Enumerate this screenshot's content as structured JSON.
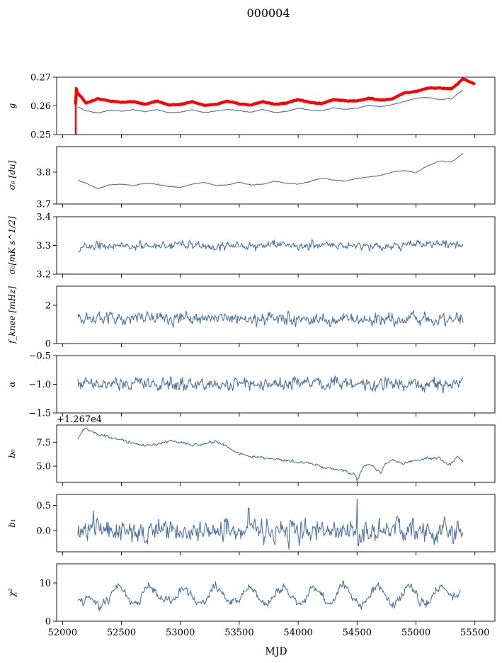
{
  "title": "000004",
  "xlabel": "MJD",
  "x_ticks": [
    "52000",
    "52500",
    "53000",
    "53500",
    "54000",
    "54500",
    "55000",
    "55500"
  ],
  "chart_data": [
    {
      "type": "line",
      "ylabel": "g",
      "xlim": [
        51950,
        55670
      ],
      "ylim": [
        0.25,
        0.27
      ],
      "y_ticks": [
        "0.25",
        "0.26",
        "0.27"
      ],
      "y_tick_values": [
        0.25,
        0.26,
        0.27
      ],
      "series": [
        {
          "color": "#ff0000",
          "x": [
            52110,
            52115,
            52125,
            52140,
            52200,
            52300,
            52400,
            52500,
            52600,
            52700,
            52800,
            52900,
            53000,
            53100,
            53200,
            53300,
            53400,
            53500,
            53600,
            53700,
            53800,
            53900,
            54000,
            54100,
            54200,
            54300,
            54400,
            54500,
            54600,
            54700,
            54800,
            54900,
            55000,
            55100,
            55200,
            55300,
            55350,
            55400,
            55450,
            55500
          ],
          "y": [
            0.2605,
            0.2665,
            0.2645,
            0.264,
            0.261,
            0.2625,
            0.2617,
            0.2613,
            0.2615,
            0.2605,
            0.2617,
            0.2603,
            0.2605,
            0.2615,
            0.2602,
            0.2605,
            0.2617,
            0.2607,
            0.2603,
            0.2615,
            0.2605,
            0.261,
            0.2622,
            0.2612,
            0.2608,
            0.2622,
            0.2618,
            0.2617,
            0.2627,
            0.262,
            0.2625,
            0.2645,
            0.265,
            0.2662,
            0.2662,
            0.266,
            0.2675,
            0.2695,
            0.2685,
            0.2675
          ]
        },
        {
          "color": "#4c72a0",
          "x": [
            52130,
            52200,
            52300,
            52400,
            52500,
            52600,
            52700,
            52800,
            52900,
            53000,
            53100,
            53200,
            53300,
            53400,
            53500,
            53600,
            53700,
            53800,
            53900,
            54000,
            54100,
            54200,
            54300,
            54400,
            54500,
            54600,
            54700,
            54800,
            54900,
            55000,
            55100,
            55200,
            55300,
            55350,
            55400
          ],
          "y": [
            0.2595,
            0.2583,
            0.2575,
            0.2585,
            0.2582,
            0.2587,
            0.258,
            0.2587,
            0.2577,
            0.2578,
            0.2587,
            0.2577,
            0.2582,
            0.2588,
            0.2583,
            0.2578,
            0.2588,
            0.2578,
            0.258,
            0.2592,
            0.2585,
            0.2583,
            0.2593,
            0.2588,
            0.2592,
            0.2602,
            0.2597,
            0.2605,
            0.2615,
            0.2627,
            0.263,
            0.2622,
            0.2625,
            0.264,
            0.2655
          ]
        }
      ]
    },
    {
      "type": "line",
      "ylabel": "σ₀ [du]",
      "xlim": [
        51950,
        55670
      ],
      "ylim": [
        3.7,
        3.88
      ],
      "y_ticks": [
        "3.7",
        "3.8"
      ],
      "y_tick_values": [
        3.7,
        3.8
      ],
      "series": [
        {
          "color": "#4c72a0",
          "x": [
            52130,
            52200,
            52300,
            52400,
            52500,
            52600,
            52700,
            52800,
            52900,
            53000,
            53100,
            53200,
            53300,
            53400,
            53500,
            53600,
            53700,
            53800,
            53900,
            54000,
            54100,
            54200,
            54300,
            54400,
            54500,
            54600,
            54700,
            54800,
            54900,
            55000,
            55100,
            55200,
            55300,
            55350,
            55400
          ],
          "y": [
            3.775,
            3.765,
            3.748,
            3.76,
            3.762,
            3.758,
            3.765,
            3.762,
            3.755,
            3.752,
            3.762,
            3.768,
            3.758,
            3.76,
            3.768,
            3.76,
            3.762,
            3.772,
            3.765,
            3.762,
            3.77,
            3.782,
            3.775,
            3.772,
            3.78,
            3.785,
            3.79,
            3.8,
            3.805,
            3.798,
            3.82,
            3.835,
            3.832,
            3.845,
            3.858
          ]
        }
      ]
    },
    {
      "type": "line",
      "ylabel": "σ₀[mK s^1/2]",
      "xlim": [
        51950,
        55670
      ],
      "ylim": [
        3.2,
        3.4
      ],
      "y_ticks": [
        "3.2",
        "3.3",
        "3.4"
      ],
      "y_tick_values": [
        3.2,
        3.3,
        3.4
      ],
      "series": [
        {
          "color": "#4c72a0",
          "noise": 0.007,
          "seed": 3,
          "x": [
            52130,
            52200,
            52300,
            52400,
            52500,
            52600,
            52700,
            52800,
            52900,
            53000,
            53100,
            53200,
            53300,
            53400,
            53500,
            53600,
            53700,
            53800,
            53900,
            54000,
            54100,
            54200,
            54300,
            54400,
            54500,
            54600,
            54700,
            54800,
            54900,
            55000,
            55100,
            55200,
            55300,
            55400
          ],
          "y": [
            3.285,
            3.3,
            3.302,
            3.298,
            3.3,
            3.295,
            3.302,
            3.3,
            3.298,
            3.302,
            3.303,
            3.3,
            3.298,
            3.3,
            3.302,
            3.295,
            3.298,
            3.302,
            3.3,
            3.298,
            3.3,
            3.302,
            3.298,
            3.295,
            3.3,
            3.298,
            3.297,
            3.3,
            3.298,
            3.302,
            3.3,
            3.303,
            3.305,
            3.3
          ]
        }
      ]
    },
    {
      "type": "line",
      "ylabel": "f_knee [mHz]",
      "xlim": [
        51950,
        55670
      ],
      "ylim": [
        0,
        3
      ],
      "y_ticks": [
        "0",
        "2"
      ],
      "y_tick_values": [
        0,
        2
      ],
      "series": [
        {
          "color": "#4c72a0",
          "noise": 0.16,
          "seed": 7,
          "x": [
            52130,
            52500,
            53000,
            53500,
            54000,
            54500,
            55000,
            55400
          ],
          "y": [
            1.32,
            1.33,
            1.3,
            1.32,
            1.3,
            1.28,
            1.27,
            1.25
          ]
        }
      ]
    },
    {
      "type": "line",
      "ylabel": "α",
      "xlim": [
        51950,
        55670
      ],
      "ylim": [
        -1.5,
        -0.5
      ],
      "y_ticks": [
        "−1.5",
        "−1.0",
        "−0.5"
      ],
      "y_tick_values": [
        -1.5,
        -1.0,
        -0.5
      ],
      "series": [
        {
          "color": "#4c72a0",
          "noise": 0.055,
          "seed": 11,
          "x": [
            52130,
            52500,
            53000,
            53500,
            54000,
            54500,
            55000,
            55400
          ],
          "y": [
            -1.0,
            -1.0,
            -1.0,
            -1.0,
            -0.98,
            -1.0,
            -1.0,
            -1.0
          ]
        }
      ]
    },
    {
      "type": "line",
      "ylabel": "b₀",
      "offset_label": "+1.267e4",
      "xlim": [
        51950,
        55670
      ],
      "ylim": [
        3.3,
        9.3
      ],
      "y_ticks": [
        "5.0",
        "7.5"
      ],
      "y_tick_values": [
        5.0,
        7.5
      ],
      "series": [
        {
          "color": "#4c72a0",
          "noise": 0.07,
          "seed": 5,
          "x": [
            52130,
            52160,
            52200,
            52300,
            52400,
            52500,
            52600,
            52700,
            52800,
            52900,
            53000,
            53100,
            53200,
            53300,
            53400,
            53500,
            53600,
            53700,
            53800,
            53900,
            54000,
            54100,
            54200,
            54300,
            54400,
            54480,
            54500,
            54550,
            54600,
            54650,
            54700,
            54750,
            54800,
            54900,
            55000,
            55100,
            55200,
            55250,
            55300,
            55350,
            55400
          ],
          "y": [
            7.8,
            8.5,
            9.0,
            8.3,
            8.0,
            7.8,
            7.4,
            7.1,
            7.3,
            7.6,
            7.5,
            7.2,
            7.3,
            7.6,
            7.0,
            6.3,
            6.0,
            5.9,
            5.7,
            5.6,
            5.4,
            5.3,
            4.9,
            4.7,
            4.5,
            4.1,
            3.5,
            4.9,
            5.3,
            4.8,
            4.4,
            5.3,
            5.6,
            5.3,
            5.6,
            5.8,
            5.9,
            5.3,
            5.2,
            6.0,
            5.6
          ]
        }
      ]
    },
    {
      "type": "line",
      "ylabel": "b₁",
      "xlim": [
        51950,
        55670
      ],
      "ylim": [
        -0.42,
        0.72
      ],
      "y_ticks": [
        "0.0",
        "0.5"
      ],
      "y_tick_values": [
        0.0,
        0.5
      ],
      "series": [
        {
          "color": "#4c72a0",
          "noise": 0.11,
          "seed": 13,
          "x": [
            52130,
            52500,
            53000,
            53500,
            54000,
            54500,
            55000,
            55400
          ],
          "y": [
            0.02,
            0.0,
            0.0,
            0.0,
            0.0,
            0.0,
            0.0,
            0.0
          ],
          "spikes": [
            [
              54500,
              0.63
            ],
            [
              54510,
              -0.3
            ],
            [
              53580,
              0.45
            ],
            [
              52260,
              0.4
            ]
          ]
        }
      ]
    },
    {
      "type": "line",
      "ylabel": "χ²",
      "xlim": [
        51950,
        55670
      ],
      "ylim": [
        0,
        15
      ],
      "y_ticks": [
        "0",
        "10"
      ],
      "y_tick_values": [
        0,
        10
      ],
      "series": [
        {
          "color": "#4c72a0",
          "noise": 0.55,
          "seed": 17,
          "x": [
            52130,
            52180,
            52230,
            52280,
            52330,
            52380,
            52430,
            52480,
            52530,
            52580,
            52630,
            52680,
            52730,
            52780,
            52830,
            52880,
            52930,
            52980,
            53030,
            53080,
            53130,
            53180,
            53230,
            53280,
            53330,
            53380,
            53430,
            53480,
            53530,
            53580,
            53630,
            53680,
            53730,
            53780,
            53830,
            53880,
            53930,
            53980,
            54030,
            54080,
            54130,
            54180,
            54230,
            54280,
            54330,
            54380,
            54430,
            54480,
            54530,
            54580,
            54630,
            54680,
            54730,
            54780,
            54830,
            54880,
            54930,
            54980,
            55030,
            55080,
            55130,
            55180,
            55230,
            55280,
            55330,
            55380
          ],
          "y": [
            6,
            5,
            6.5,
            5,
            3.5,
            6,
            8,
            9.5,
            7,
            5,
            4.5,
            6.5,
            9.5,
            8,
            5.5,
            5.5,
            5,
            7,
            9,
            7.5,
            5,
            4.5,
            6.5,
            9.5,
            8,
            5.5,
            5.5,
            5,
            7,
            9.5,
            8,
            5,
            4.5,
            6.5,
            8.5,
            9,
            7,
            5,
            4.5,
            6.5,
            9,
            7.5,
            5,
            4.5,
            7,
            10,
            8,
            5.5,
            4,
            5,
            8,
            9.5,
            7,
            4.5,
            4.5,
            7,
            9,
            8,
            5,
            4.5,
            6,
            8.5,
            9,
            7,
            6.5,
            8
          ]
        }
      ]
    }
  ]
}
